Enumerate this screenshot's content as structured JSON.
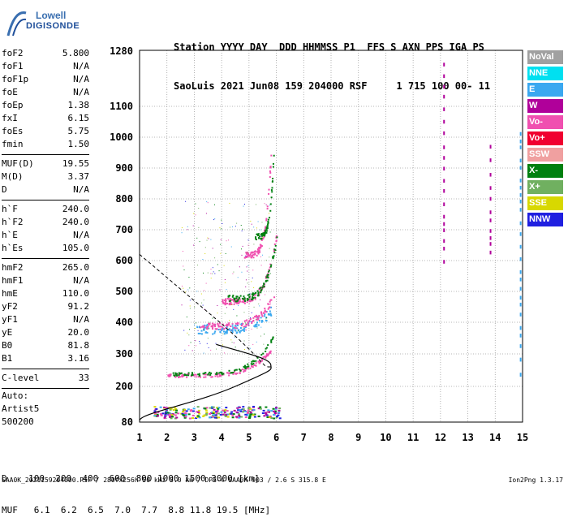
{
  "logo": {
    "line1": "Lowell",
    "line2": "DIGISONDE"
  },
  "header": {
    "line1": "Station YYYY DAY  DDD HHMMSS P1  FFS S AXN PPS IGA PS",
    "line2": "SaoLuis 2021 Jun08 159 204000 RSF     1 715 100 00- 11"
  },
  "params": [
    {
      "label": "foF2",
      "value": "5.800"
    },
    {
      "label": "foF1",
      "value": "N/A"
    },
    {
      "label": "foF1p",
      "value": "N/A"
    },
    {
      "label": "foE",
      "value": "N/A"
    },
    {
      "label": "foEp",
      "value": "1.38"
    },
    {
      "label": "fxI",
      "value": "6.15"
    },
    {
      "label": "foEs",
      "value": "5.75"
    },
    {
      "label": "fmin",
      "value": "1.50"
    },
    {
      "sep": true
    },
    {
      "label": "MUF(D)",
      "value": "19.55"
    },
    {
      "label": "M(D)",
      "value": "3.37"
    },
    {
      "label": "D",
      "value": "N/A"
    },
    {
      "sep": true
    },
    {
      "label": "h`F",
      "value": "240.0"
    },
    {
      "label": "h`F2",
      "value": "240.0"
    },
    {
      "label": "h`E",
      "value": "N/A"
    },
    {
      "label": "h`Es",
      "value": "105.0"
    },
    {
      "sep": true
    },
    {
      "label": "hmF2",
      "value": "265.0"
    },
    {
      "label": "hmF1",
      "value": "N/A"
    },
    {
      "label": "hmE",
      "value": "110.0"
    },
    {
      "label": "yF2",
      "value": "91.2"
    },
    {
      "label": "yF1",
      "value": "N/A"
    },
    {
      "label": "yE",
      "value": "20.0"
    },
    {
      "label": "B0",
      "value": "81.8"
    },
    {
      "label": "B1",
      "value": "3.16"
    },
    {
      "sep": true
    },
    {
      "label": "C-level",
      "value": "33"
    },
    {
      "sep": true
    }
  ],
  "auto": {
    "line1": "Auto:",
    "line2": "Artist5",
    "line3": "500200"
  },
  "legend": [
    {
      "label": "NoVal",
      "color": "#a0a0a0"
    },
    {
      "label": "NNE",
      "color": "#00e0f0"
    },
    {
      "label": "E",
      "color": "#3aa8f0"
    },
    {
      "label": "W",
      "color": "#b0009a"
    },
    {
      "label": "Vo-",
      "color": "#f050b0"
    },
    {
      "label": "Vo+",
      "color": "#f00030"
    },
    {
      "label": "SSW",
      "color": "#f0a0a0"
    },
    {
      "label": "X-",
      "color": "#008010"
    },
    {
      "label": "X+",
      "color": "#70b060"
    },
    {
      "label": "SSE",
      "color": "#d8d800"
    },
    {
      "label": "NNW",
      "color": "#2020e0"
    }
  ],
  "axes": {
    "y_ticks": [
      "1280",
      "1100",
      "1000",
      "900",
      "800",
      "700",
      "600",
      "500",
      "400",
      "300",
      "200",
      "80"
    ],
    "x_ticks": [
      "1",
      "2",
      "3",
      "4",
      "5",
      "6",
      "7",
      "8",
      "9",
      "10",
      "11",
      "12",
      "13",
      "14",
      "15"
    ]
  },
  "bottom": {
    "line1": "D    100  200  400  600  800 1000 1500 3000 [km]",
    "line2": "MUF   6.1  6.2  6.5  7.0  7.7  8.8 11.8 19.5 [MHz]"
  },
  "footer": "SAA0K_2021159204000.RSF / 280fx256h 50 kHz 5.0 km / DPS-4 SAA0K 903 / 2.6 S 315.8 E",
  "version": "Ion2Png 1.3.17",
  "colors": {
    "grid": "#a0a0a0",
    "echo_o": "#f050b0",
    "echo_x": "#008010",
    "echo_e": "#3aa8f0",
    "echo_w": "#b0009a",
    "curve": "#000000"
  }
}
